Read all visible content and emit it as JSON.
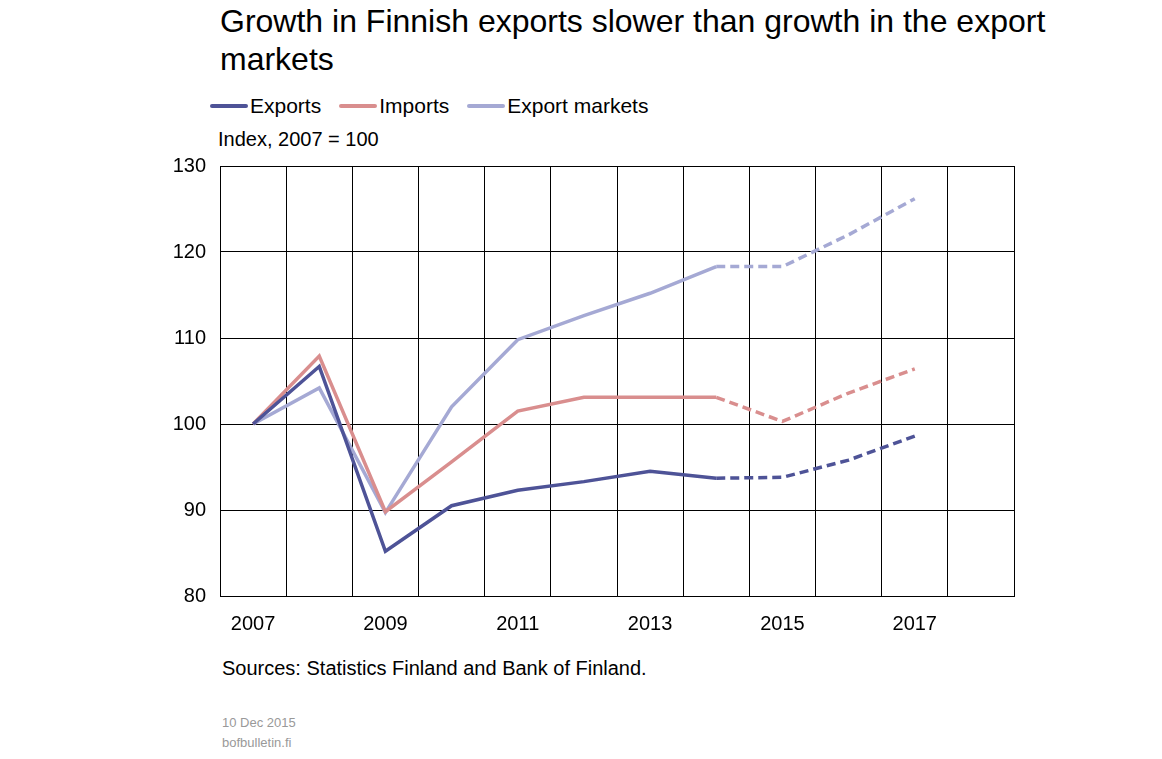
{
  "chart_data": {
    "type": "line",
    "title": "Growth in Finnish exports slower than growth in the export markets",
    "ylabel": "Index, 2007 = 100",
    "source": "Sources: Statistics Finland and Bank of Finland.",
    "footer": [
      "10 Dec 2015",
      "bofbulletin.fi"
    ],
    "categories": [
      "2007",
      null,
      "2009",
      null,
      "2011",
      null,
      "2013",
      null,
      "2015",
      null,
      "2017",
      null
    ],
    "series": [
      {
        "name": "Exports",
        "color": "#4e5397",
        "line_style": "solid",
        "values": [
          100,
          106.7,
          85.2,
          90.5,
          92.3,
          93.3,
          94.5,
          93.7,
          null,
          null,
          null,
          null
        ]
      },
      {
        "name": "Imports",
        "color": "#d98e8e",
        "line_style": "solid",
        "values": [
          100,
          107.9,
          89.8,
          95.6,
          101.5,
          103.1,
          103.1,
          103.1,
          null,
          null,
          null,
          null
        ]
      },
      {
        "name": "Export markets",
        "color": "#a5a9d4",
        "line_style": "solid",
        "values": [
          100,
          104.2,
          89.7,
          102.0,
          109.8,
          112.6,
          115.2,
          118.3,
          null,
          null,
          null,
          null
        ]
      },
      {
        "name": "Exports",
        "color": "#4e5397",
        "line_style": "dashed",
        "values": [
          null,
          null,
          null,
          null,
          null,
          null,
          null,
          93.7,
          93.8,
          95.8,
          98.6,
          null
        ]
      },
      {
        "name": "Imports",
        "color": "#d98e8e",
        "line_style": "dashed",
        "values": [
          null,
          null,
          null,
          null,
          null,
          null,
          null,
          103.1,
          100.3,
          103.6,
          106.4,
          null
        ]
      },
      {
        "name": "Export markets",
        "color": "#a5a9d4",
        "line_style": "dashed",
        "values": [
          null,
          null,
          null,
          null,
          null,
          null,
          null,
          118.3,
          118.3,
          122.0,
          126.2,
          null
        ]
      }
    ],
    "ylim": [
      80,
      130
    ],
    "yticks": [
      80,
      90,
      100,
      110,
      120,
      130
    ],
    "grid": true
  }
}
